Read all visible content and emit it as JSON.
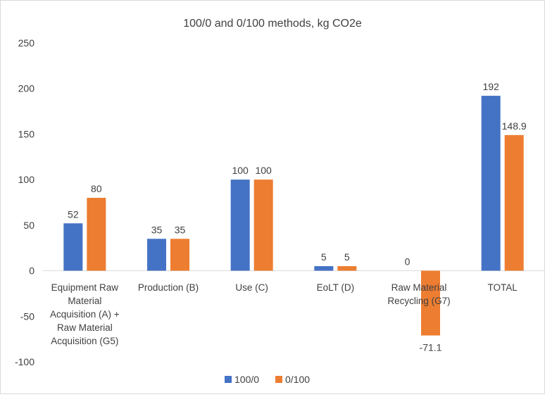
{
  "chart_data": {
    "type": "bar",
    "title": "100/0 and 0/100 methods, kg CO2e",
    "categories": [
      [
        "Equipment Raw",
        "Material",
        "Acquisition (A) +",
        "Raw Material",
        "Acquisition (G5)"
      ],
      [
        "Production (B)"
      ],
      [
        "Use (C)"
      ],
      [
        "EoLT (D)"
      ],
      [
        "Raw Material",
        "Recycling (G7)"
      ],
      [
        "TOTAL"
      ]
    ],
    "series": [
      {
        "name": "100/0",
        "color": "#4472c4",
        "values": [
          52,
          35,
          100,
          5,
          0,
          192
        ],
        "labels": [
          "52",
          "35",
          "100",
          "5",
          "0",
          "192"
        ]
      },
      {
        "name": "0/100",
        "color": "#ed7d31",
        "values": [
          80,
          35,
          100,
          5,
          -71.1,
          148.9
        ],
        "labels": [
          "80",
          "35",
          "100",
          "5",
          "-71.1",
          "148.9"
        ]
      }
    ],
    "ylim": [
      -100,
      250
    ],
    "yticks": [
      250,
      200,
      150,
      100,
      50,
      0,
      -50,
      -100
    ],
    "ytick_labels": [
      "250",
      "200",
      "150",
      "100",
      "50",
      "0",
      "-50",
      "-100"
    ],
    "grid": false,
    "legend": "bottom-center"
  }
}
